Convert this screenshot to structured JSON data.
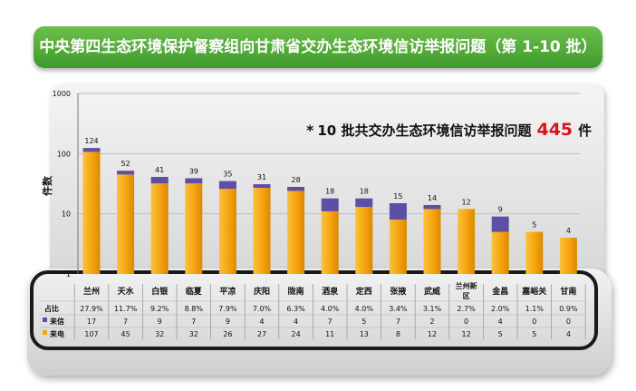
{
  "banner_title": "中央第四生态环境保护督察组向甘肃省交办生态环境信访举报问题（第 1-10 批）",
  "callout": {
    "star": "*",
    "text": "10 批共交办生态环境信访举报问题",
    "total": "445",
    "unit": "件"
  },
  "colors": {
    "visit": "#f5a30f",
    "letter": "#5d4ea6",
    "banner": "#4ea637"
  },
  "chart_data": {
    "type": "bar",
    "ylabel": "件数",
    "yscale": "log",
    "ylim": [
      1,
      1000
    ],
    "yticks": [
      "1",
      "10",
      "100",
      "1000"
    ],
    "grid": true,
    "categories": [
      "兰州",
      "天水",
      "白银",
      "临夏",
      "平凉",
      "庆阳",
      "陇南",
      "酒泉",
      "定西",
      "张掖",
      "武威",
      "兰州新区",
      "金昌",
      "嘉峪关",
      "甘南"
    ],
    "category_lines": [
      [
        "兰州"
      ],
      [
        "天水"
      ],
      [
        "白银"
      ],
      [
        "临夏"
      ],
      [
        "平凉"
      ],
      [
        "庆阳"
      ],
      [
        "陇南"
      ],
      [
        "酒泉"
      ],
      [
        "定西"
      ],
      [
        "张掖"
      ],
      [
        "武威"
      ],
      [
        "兰州新",
        "区"
      ],
      [
        "金昌"
      ],
      [
        "嘉峪关"
      ],
      [
        "甘南"
      ]
    ],
    "totals": [
      "124",
      "52",
      "41",
      "39",
      "35",
      "31",
      "28",
      "18",
      "18",
      "15",
      "14",
      "12",
      "9",
      "5",
      "4"
    ],
    "series": [
      {
        "name": "来信",
        "values": [
          17,
          7,
          9,
          7,
          9,
          4,
          4,
          7,
          5,
          7,
          2,
          0,
          4,
          0,
          0
        ]
      },
      {
        "name": "来电",
        "values": [
          107,
          45,
          32,
          32,
          26,
          27,
          24,
          11,
          13,
          8,
          12,
          12,
          5,
          5,
          4
        ]
      }
    ],
    "share": {
      "name": "占比",
      "values": [
        "27.9%",
        "11.7%",
        "9.2%",
        "8.8%",
        "7.9%",
        "7.0%",
        "6.3%",
        "4.0%",
        "4.0%",
        "3.4%",
        "3.1%",
        "2.7%",
        "2.0%",
        "1.1%",
        "0.9%"
      ]
    }
  }
}
